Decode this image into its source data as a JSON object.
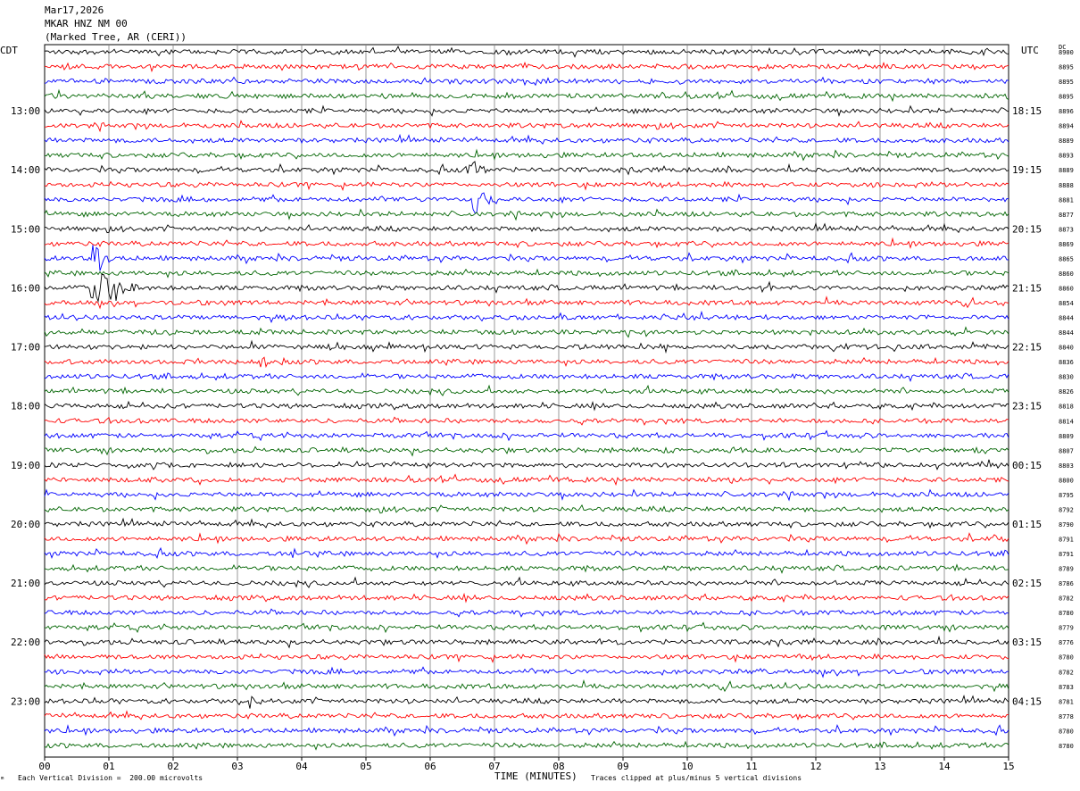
{
  "header": {
    "date": "Mar17,2026",
    "station": "MKAR HNZ NM 00",
    "location": "(Marked Tree, AR (CERI))"
  },
  "left_timezone": "CDT",
  "right_timezone": "UTC",
  "dc_label": "DC",
  "footer": {
    "scale_note": "Each Vertical Division =  200.00 microvolts",
    "xlabel": "TIME (MINUTES)",
    "clip_note": "Traces clipped at plus/minus 5 vertical divisions",
    "corner_mark": "ᵐ"
  },
  "colors": {
    "trace_cycle": [
      "#000000",
      "#ff0000",
      "#0000ff",
      "#006400"
    ],
    "grid": "#808080"
  },
  "chart_data": {
    "type": "line",
    "title": "",
    "xlabel": "TIME (MINUTES)",
    "xlim": [
      0,
      15
    ],
    "x_ticks": [
      "00",
      "01",
      "02",
      "03",
      "04",
      "05",
      "06",
      "07",
      "08",
      "09",
      "10",
      "11",
      "12",
      "13",
      "14",
      "15"
    ],
    "grid": true,
    "trace_count": 48,
    "minutes_per_trace": 15,
    "left_hour_labels": [
      {
        "trace": 4,
        "label": "13:00"
      },
      {
        "trace": 8,
        "label": "14:00"
      },
      {
        "trace": 12,
        "label": "15:00"
      },
      {
        "trace": 16,
        "label": "16:00"
      },
      {
        "trace": 20,
        "label": "17:00"
      },
      {
        "trace": 24,
        "label": "18:00"
      },
      {
        "trace": 28,
        "label": "19:00"
      },
      {
        "trace": 32,
        "label": "20:00"
      },
      {
        "trace": 36,
        "label": "21:00"
      },
      {
        "trace": 40,
        "label": "22:00"
      },
      {
        "trace": 44,
        "label": "23:00"
      }
    ],
    "right_hour_labels": [
      {
        "trace": 4,
        "label": "18:15"
      },
      {
        "trace": 8,
        "label": "19:15"
      },
      {
        "trace": 12,
        "label": "20:15"
      },
      {
        "trace": 16,
        "label": "21:15"
      },
      {
        "trace": 20,
        "label": "22:15"
      },
      {
        "trace": 24,
        "label": "23:15"
      },
      {
        "trace": 28,
        "label": "00:15"
      },
      {
        "trace": 32,
        "label": "01:15"
      },
      {
        "trace": 36,
        "label": "02:15"
      },
      {
        "trace": 40,
        "label": "03:15"
      },
      {
        "trace": 44,
        "label": "04:15"
      }
    ],
    "dc_offsets": [
      "8900",
      "8895",
      "8895",
      "8895",
      "8896",
      "8894",
      "8889",
      "8893",
      "8889",
      "8888",
      "8881",
      "8877",
      "8873",
      "8869",
      "8865",
      "8860",
      "8860",
      "8854",
      "8844",
      "8844",
      "8840",
      "8836",
      "8830",
      "8826",
      "8818",
      "8814",
      "8809",
      "8807",
      "8803",
      "8800",
      "8795",
      "8792",
      "8790",
      "8791",
      "8791",
      "8789",
      "8786",
      "8782",
      "8780",
      "8779",
      "8776",
      "8780",
      "8782",
      "8783",
      "8781",
      "8778",
      "8780",
      "8780"
    ],
    "events": [
      {
        "trace": 16,
        "minute": 0.75,
        "amplitude": 5,
        "duration_min": 0.7
      },
      {
        "trace": 14,
        "minute": 0.75,
        "amplitude": 5,
        "duration_min": 0.3
      },
      {
        "trace": 10,
        "minute": 6.7,
        "amplitude": 5,
        "duration_min": 0.3
      },
      {
        "trace": 8,
        "minute": 6.6,
        "amplitude": 1.5,
        "duration_min": 0.4
      },
      {
        "trace": 21,
        "minute": 3.4,
        "amplitude": 1.2,
        "duration_min": 0.4
      },
      {
        "trace": 16,
        "minute": 11.2,
        "amplitude": 1.2,
        "duration_min": 0.4
      },
      {
        "trace": 44,
        "minute": 3.2,
        "amplitude": 1.0,
        "duration_min": 0.4
      },
      {
        "trace": 24,
        "minute": 14.8,
        "amplitude": 1.0,
        "duration_min": 0.2
      },
      {
        "trace": 27,
        "minute": 9.6,
        "amplitude": 0.9,
        "duration_min": 0.3
      },
      {
        "trace": 45,
        "minute": 9.3,
        "amplitude": 0.8,
        "duration_min": 0.3
      },
      {
        "trace": 35,
        "minute": 13.2,
        "amplitude": 0.8,
        "duration_min": 0.2
      },
      {
        "trace": 34,
        "minute": 3.9,
        "amplitude": 0.8,
        "duration_min": 0.2
      },
      {
        "trace": 23,
        "minute": 8.7,
        "amplitude": 0.7,
        "duration_min": 0.2
      },
      {
        "trace": 33,
        "minute": 14.8,
        "amplitude": 0.8,
        "duration_min": 0.2
      }
    ]
  }
}
